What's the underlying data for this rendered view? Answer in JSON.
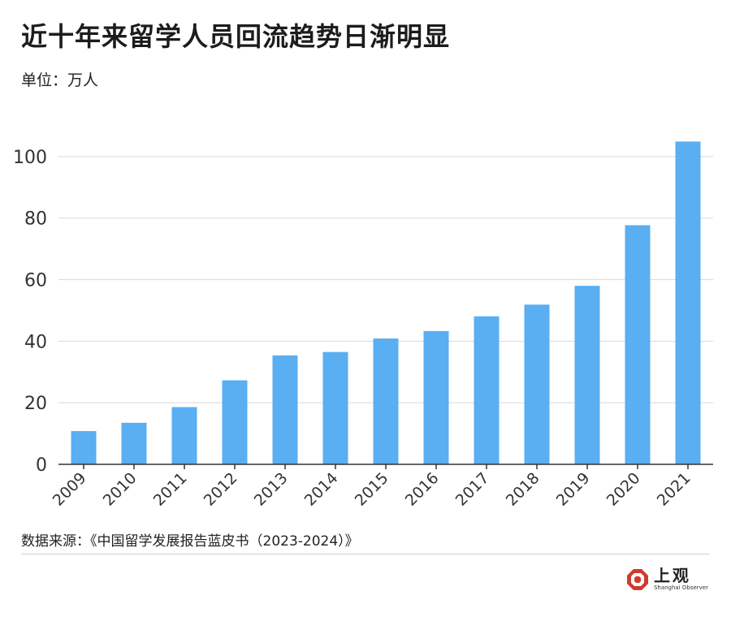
{
  "header": {
    "title": "近十年来留学人员回流趋势日渐明显",
    "unit": "单位：万人"
  },
  "footer": {
    "source": "数据来源：《中国留学发展报告蓝皮书（2023-2024）》",
    "brand_name": "上观",
    "brand_sub": "Shanghai Observer"
  },
  "colors": {
    "bar": "#5aaef2",
    "grid": "#d9d9d9",
    "axis": "#333333",
    "logo": "#d23a2e"
  },
  "chart_data": {
    "type": "bar",
    "categories": [
      "2009",
      "2010",
      "2011",
      "2012",
      "2013",
      "2014",
      "2015",
      "2016",
      "2017",
      "2018",
      "2019",
      "2020",
      "2021"
    ],
    "values": [
      10.8,
      13.5,
      18.6,
      27.3,
      35.4,
      36.5,
      40.9,
      43.3,
      48.1,
      51.9,
      58.0,
      77.7,
      104.9
    ],
    "ylim": [
      0,
      110
    ],
    "yticks": [
      0,
      20,
      40,
      60,
      80,
      100
    ],
    "grid": true,
    "legend": "none"
  }
}
